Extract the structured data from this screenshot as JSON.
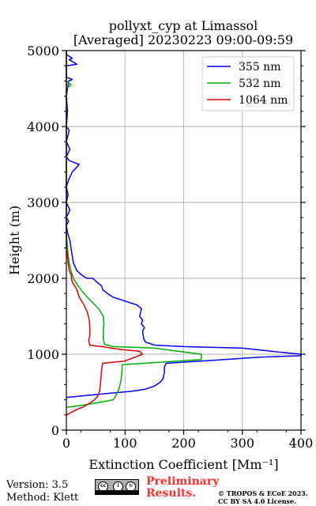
{
  "chart_data": {
    "type": "line",
    "title_line1": "pollyxt_cyp at Limassol",
    "title_line2": "[Averaged] 20230223 09:00-09:59",
    "xlabel": "Extinction Coefficient [Mm⁻¹]",
    "ylabel": "Height (m)",
    "xlim": [
      0,
      400
    ],
    "ylim": [
      0,
      5000
    ],
    "xticks": [
      0,
      100,
      200,
      300,
      400
    ],
    "yticks": [
      0,
      1000,
      2000,
      3000,
      4000,
      5000
    ],
    "grid": true,
    "legend_position": "top-right",
    "series": [
      {
        "name": "355 nm",
        "color": "#0000ff",
        "points": [
          [
            0,
            430
          ],
          [
            40,
            460
          ],
          [
            80,
            490
          ],
          [
            110,
            510
          ],
          [
            135,
            540
          ],
          [
            150,
            580
          ],
          [
            160,
            630
          ],
          [
            165,
            680
          ],
          [
            167,
            760
          ],
          [
            167,
            830
          ],
          [
            170,
            880
          ],
          [
            250,
            920
          ],
          [
            330,
            960
          ],
          [
            400,
            980
          ],
          [
            400,
            1000
          ],
          [
            360,
            1030
          ],
          [
            300,
            1080
          ],
          [
            200,
            1100
          ],
          [
            150,
            1120
          ],
          [
            135,
            1160
          ],
          [
            132,
            1200
          ],
          [
            130,
            1300
          ],
          [
            133,
            1350
          ],
          [
            128,
            1400
          ],
          [
            130,
            1450
          ],
          [
            125,
            1500
          ],
          [
            128,
            1600
          ],
          [
            120,
            1650
          ],
          [
            100,
            1700
          ],
          [
            80,
            1750
          ],
          [
            70,
            1800
          ],
          [
            62,
            1850
          ],
          [
            60,
            1900
          ],
          [
            52,
            1950
          ],
          [
            45,
            2000
          ],
          [
            35,
            2000
          ],
          [
            25,
            2050
          ],
          [
            18,
            2100
          ],
          [
            12,
            2200
          ],
          [
            10,
            2300
          ],
          [
            8,
            2400
          ],
          [
            6,
            2500
          ],
          [
            2,
            2600
          ],
          [
            0,
            2700
          ],
          [
            4,
            2750
          ],
          [
            0,
            2800
          ],
          [
            6,
            2900
          ],
          [
            0,
            3000
          ],
          [
            3,
            3100
          ],
          [
            0,
            3200
          ],
          [
            4,
            3300
          ],
          [
            10,
            3400
          ],
          [
            22,
            3500
          ],
          [
            5,
            3550
          ],
          [
            0,
            3600
          ],
          [
            6,
            3700
          ],
          [
            0,
            3800
          ],
          [
            5,
            3950
          ],
          [
            0,
            4000
          ],
          [
            2,
            4200
          ],
          [
            0,
            4400
          ],
          [
            4,
            4600
          ],
          [
            10,
            4620
          ],
          [
            0,
            4650
          ],
          [
            0,
            4800
          ],
          [
            18,
            4820
          ],
          [
            5,
            4880
          ],
          [
            10,
            4900
          ],
          [
            0,
            4950
          ],
          [
            0,
            5000
          ]
        ]
      },
      {
        "name": "532 nm",
        "color": "#00b000",
        "points": [
          [
            0,
            300
          ],
          [
            30,
            330
          ],
          [
            60,
            370
          ],
          [
            80,
            400
          ],
          [
            85,
            460
          ],
          [
            90,
            550
          ],
          [
            93,
            650
          ],
          [
            94,
            720
          ],
          [
            95,
            790
          ],
          [
            95,
            860
          ],
          [
            150,
            890
          ],
          [
            230,
            930
          ],
          [
            230,
            1000
          ],
          [
            190,
            1040
          ],
          [
            150,
            1080
          ],
          [
            80,
            1100
          ],
          [
            65,
            1130
          ],
          [
            63,
            1200
          ],
          [
            63,
            1300
          ],
          [
            64,
            1400
          ],
          [
            63,
            1500
          ],
          [
            55,
            1600
          ],
          [
            42,
            1700
          ],
          [
            30,
            1800
          ],
          [
            20,
            1900
          ],
          [
            12,
            2000
          ],
          [
            8,
            2100
          ],
          [
            5,
            2200
          ],
          [
            3,
            2300
          ],
          [
            2,
            2400
          ],
          [
            1,
            2500
          ],
          [
            0,
            2600
          ],
          [
            0,
            2900
          ],
          [
            0,
            3500
          ],
          [
            0,
            4000
          ],
          [
            0,
            4500
          ],
          [
            8,
            4550
          ],
          [
            0,
            4600
          ],
          [
            0,
            5000
          ]
        ]
      },
      {
        "name": "1064 nm",
        "color": "#e00000",
        "points": [
          [
            0,
            200
          ],
          [
            15,
            260
          ],
          [
            30,
            310
          ],
          [
            45,
            380
          ],
          [
            53,
            440
          ],
          [
            57,
            520
          ],
          [
            58,
            600
          ],
          [
            59,
            700
          ],
          [
            60,
            800
          ],
          [
            62,
            880
          ],
          [
            100,
            910
          ],
          [
            130,
            1000
          ],
          [
            125,
            1040
          ],
          [
            95,
            1060
          ],
          [
            60,
            1100
          ],
          [
            40,
            1120
          ],
          [
            38,
            1180
          ],
          [
            40,
            1250
          ],
          [
            40,
            1350
          ],
          [
            39,
            1450
          ],
          [
            36,
            1550
          ],
          [
            30,
            1650
          ],
          [
            22,
            1750
          ],
          [
            18,
            1850
          ],
          [
            10,
            1950
          ],
          [
            8,
            2050
          ],
          [
            5,
            2100
          ],
          [
            3,
            2200
          ],
          [
            2,
            2300
          ],
          [
            0,
            2400
          ],
          [
            0,
            3000
          ],
          [
            0,
            4000
          ],
          [
            0,
            5000
          ]
        ]
      }
    ]
  },
  "footer": {
    "version": "Version: 3.5",
    "method": "Method: Klett",
    "preliminary_line1": "Preliminary",
    "preliminary_line2": "Results.",
    "license_line1": "© TROPOS & ECoE 2023.",
    "license_line2": "CC BY SA 4.0 License."
  }
}
